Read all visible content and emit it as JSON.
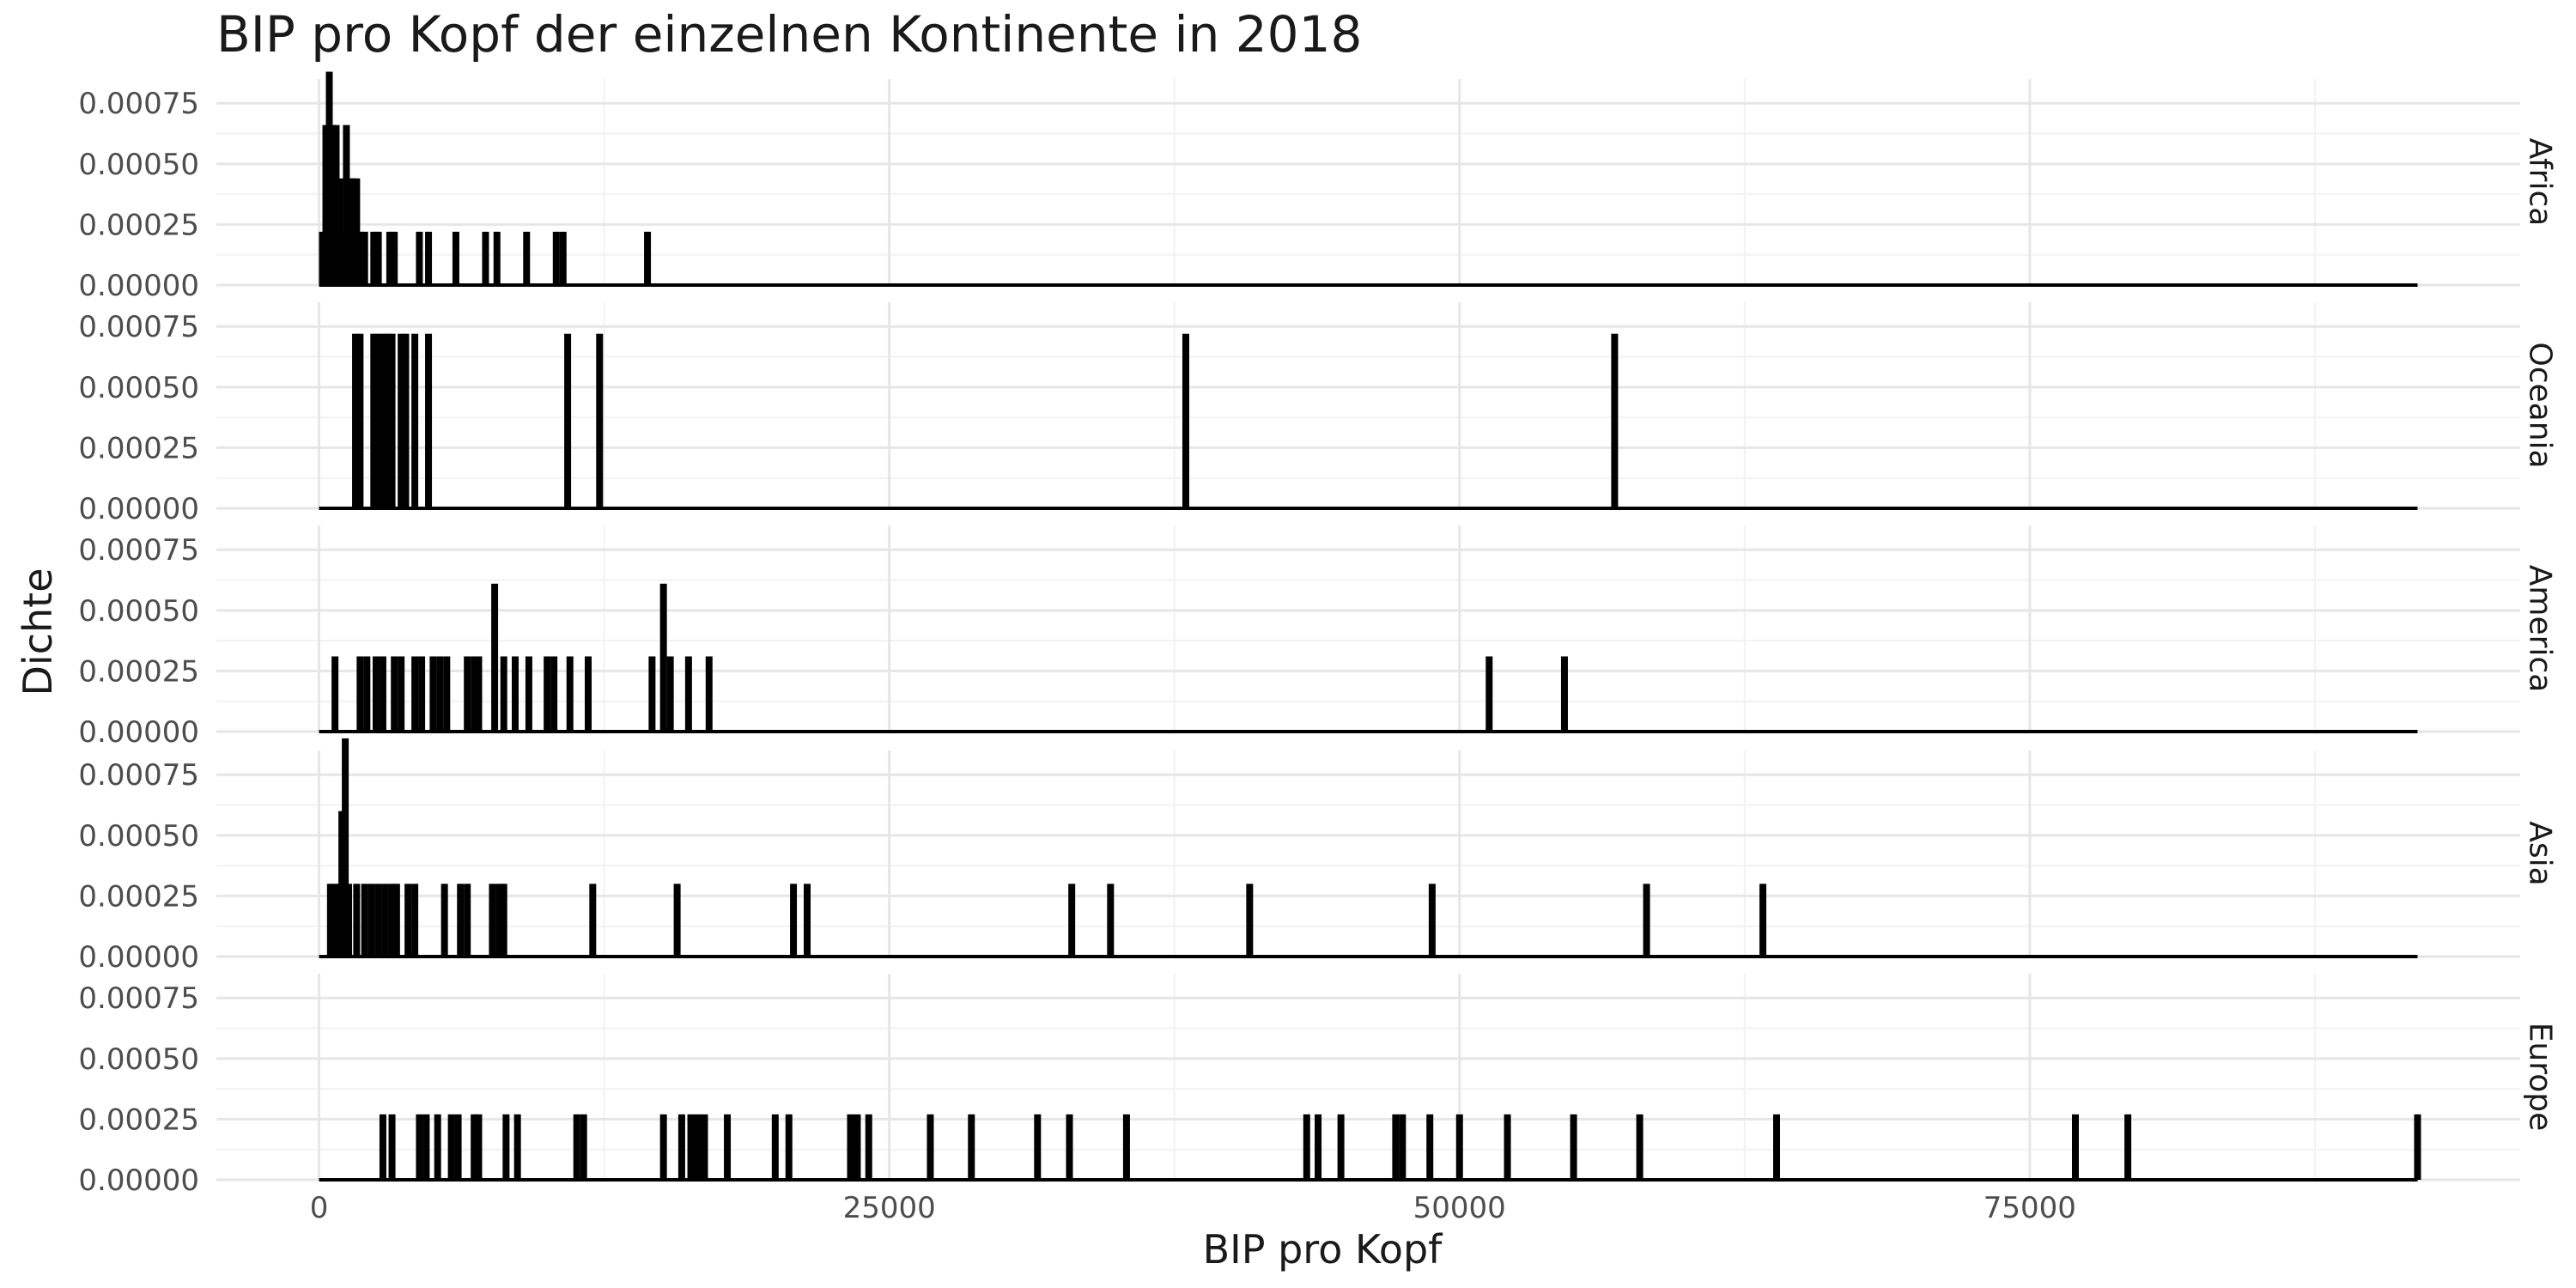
{
  "chart_data": {
    "type": "bar",
    "title": "BIP pro Kopf der einzelnen Kontinente in 2018",
    "xlabel": "BIP pro Kopf",
    "ylabel": "Dichte",
    "xlim": [
      -4500,
      96500
    ],
    "x_ticks": [
      0,
      25000,
      50000,
      75000
    ],
    "x_tick_labels": [
      "0",
      "25000",
      "50000",
      "75000"
    ],
    "ylim": [
      0,
      0.00085
    ],
    "y_ticks": [
      0,
      0.00025,
      0.0005,
      0.00075
    ],
    "y_tick_labels": [
      "0.00000",
      "0.00025",
      "0.00050",
      "0.00075"
    ],
    "grid": true,
    "baseline_range": [
      0,
      92000
    ],
    "panels": [
      {
        "name": "Africa",
        "bars": [
          {
            "x": 150,
            "y": 0.00022
          },
          {
            "x": 300,
            "y": 0.00066
          },
          {
            "x": 450,
            "y": 0.00088
          },
          {
            "x": 600,
            "y": 0.00066
          },
          {
            "x": 750,
            "y": 0.00066
          },
          {
            "x": 900,
            "y": 0.00044
          },
          {
            "x": 1050,
            "y": 0.00022
          },
          {
            "x": 1200,
            "y": 0.00066
          },
          {
            "x": 1350,
            "y": 0.00044
          },
          {
            "x": 1500,
            "y": 0.00044
          },
          {
            "x": 1650,
            "y": 0.00044
          },
          {
            "x": 1800,
            "y": 0.00022
          },
          {
            "x": 2000,
            "y": 0.00022
          },
          {
            "x": 2400,
            "y": 0.00022
          },
          {
            "x": 2600,
            "y": 0.00022
          },
          {
            "x": 3100,
            "y": 0.00022
          },
          {
            "x": 3300,
            "y": 0.00022
          },
          {
            "x": 4400,
            "y": 0.00022
          },
          {
            "x": 4800,
            "y": 0.00022
          },
          {
            "x": 6000,
            "y": 0.00022
          },
          {
            "x": 7300,
            "y": 0.00022
          },
          {
            "x": 7800,
            "y": 0.00022
          },
          {
            "x": 9100,
            "y": 0.00022
          },
          {
            "x": 10400,
            "y": 0.00022
          },
          {
            "x": 10700,
            "y": 0.00022
          },
          {
            "x": 14400,
            "y": 0.00022
          }
        ]
      },
      {
        "name": "Oceania",
        "bars": [
          {
            "x": 1600,
            "y": 0.00072
          },
          {
            "x": 1800,
            "y": 0.00072
          },
          {
            "x": 2400,
            "y": 0.00072
          },
          {
            "x": 2600,
            "y": 0.00072
          },
          {
            "x": 2800,
            "y": 0.00072
          },
          {
            "x": 3000,
            "y": 0.00072
          },
          {
            "x": 3200,
            "y": 0.00072
          },
          {
            "x": 3600,
            "y": 0.00072
          },
          {
            "x": 3800,
            "y": 0.00072
          },
          {
            "x": 4200,
            "y": 0.00072
          },
          {
            "x": 4800,
            "y": 0.00072
          },
          {
            "x": 10900,
            "y": 0.00072
          },
          {
            "x": 12300,
            "y": 0.00072
          },
          {
            "x": 38000,
            "y": 0.00072
          },
          {
            "x": 56800,
            "y": 0.00072
          }
        ]
      },
      {
        "name": "America",
        "bars": [
          {
            "x": 700,
            "y": 0.00031
          },
          {
            "x": 1800,
            "y": 0.00031
          },
          {
            "x": 2100,
            "y": 0.00031
          },
          {
            "x": 2500,
            "y": 0.00031
          },
          {
            "x": 2800,
            "y": 0.00031
          },
          {
            "x": 3300,
            "y": 0.00031
          },
          {
            "x": 3600,
            "y": 0.00031
          },
          {
            "x": 4200,
            "y": 0.00031
          },
          {
            "x": 4500,
            "y": 0.00031
          },
          {
            "x": 5000,
            "y": 0.00031
          },
          {
            "x": 5300,
            "y": 0.00031
          },
          {
            "x": 5600,
            "y": 0.00031
          },
          {
            "x": 6500,
            "y": 0.00031
          },
          {
            "x": 6800,
            "y": 0.00031
          },
          {
            "x": 7000,
            "y": 0.00031
          },
          {
            "x": 7700,
            "y": 0.00061
          },
          {
            "x": 8100,
            "y": 0.00031
          },
          {
            "x": 8600,
            "y": 0.00031
          },
          {
            "x": 9200,
            "y": 0.00031
          },
          {
            "x": 10000,
            "y": 0.00031
          },
          {
            "x": 10300,
            "y": 0.00031
          },
          {
            "x": 11000,
            "y": 0.00031
          },
          {
            "x": 11800,
            "y": 0.00031
          },
          {
            "x": 14600,
            "y": 0.00031
          },
          {
            "x": 15100,
            "y": 0.00061
          },
          {
            "x": 15400,
            "y": 0.00031
          },
          {
            "x": 16200,
            "y": 0.00031
          },
          {
            "x": 17100,
            "y": 0.00031
          },
          {
            "x": 51300,
            "y": 0.00031
          },
          {
            "x": 54600,
            "y": 0.00031
          }
        ]
      },
      {
        "name": "Asia",
        "bars": [
          {
            "x": 500,
            "y": 0.0003
          },
          {
            "x": 700,
            "y": 0.0003
          },
          {
            "x": 900,
            "y": 0.0003
          },
          {
            "x": 1000,
            "y": 0.0006
          },
          {
            "x": 1150,
            "y": 0.0009
          },
          {
            "x": 1300,
            "y": 0.0003
          },
          {
            "x": 1650,
            "y": 0.0003
          },
          {
            "x": 2000,
            "y": 0.0003
          },
          {
            "x": 2300,
            "y": 0.0003
          },
          {
            "x": 2600,
            "y": 0.0003
          },
          {
            "x": 2900,
            "y": 0.0003
          },
          {
            "x": 3200,
            "y": 0.0003
          },
          {
            "x": 3400,
            "y": 0.0003
          },
          {
            "x": 3900,
            "y": 0.0003
          },
          {
            "x": 4200,
            "y": 0.0003
          },
          {
            "x": 5500,
            "y": 0.0003
          },
          {
            "x": 6200,
            "y": 0.0003
          },
          {
            "x": 6500,
            "y": 0.0003
          },
          {
            "x": 7600,
            "y": 0.0003
          },
          {
            "x": 7900,
            "y": 0.0003
          },
          {
            "x": 8100,
            "y": 0.0003
          },
          {
            "x": 12000,
            "y": 0.0003
          },
          {
            "x": 15700,
            "y": 0.0003
          },
          {
            "x": 20800,
            "y": 0.0003
          },
          {
            "x": 21400,
            "y": 0.0003
          },
          {
            "x": 33000,
            "y": 0.0003
          },
          {
            "x": 34700,
            "y": 0.0003
          },
          {
            "x": 40800,
            "y": 0.0003
          },
          {
            "x": 48800,
            "y": 0.0003
          },
          {
            "x": 58200,
            "y": 0.0003
          },
          {
            "x": 63300,
            "y": 0.0003
          }
        ]
      },
      {
        "name": "Europe",
        "bars": [
          {
            "x": 2800,
            "y": 0.00027
          },
          {
            "x": 3200,
            "y": 0.00027
          },
          {
            "x": 4400,
            "y": 0.00027
          },
          {
            "x": 4700,
            "y": 0.00027
          },
          {
            "x": 5200,
            "y": 0.00027
          },
          {
            "x": 5800,
            "y": 0.00027
          },
          {
            "x": 6100,
            "y": 0.00027
          },
          {
            "x": 6800,
            "y": 0.00027
          },
          {
            "x": 7000,
            "y": 0.00027
          },
          {
            "x": 8200,
            "y": 0.00027
          },
          {
            "x": 8700,
            "y": 0.00027
          },
          {
            "x": 11300,
            "y": 0.00027
          },
          {
            "x": 11600,
            "y": 0.00027
          },
          {
            "x": 15100,
            "y": 0.00027
          },
          {
            "x": 15900,
            "y": 0.00027
          },
          {
            "x": 16300,
            "y": 0.00027
          },
          {
            "x": 16600,
            "y": 0.00027
          },
          {
            "x": 16900,
            "y": 0.00027
          },
          {
            "x": 17900,
            "y": 0.00027
          },
          {
            "x": 20000,
            "y": 0.00027
          },
          {
            "x": 20600,
            "y": 0.00027
          },
          {
            "x": 23300,
            "y": 0.00027
          },
          {
            "x": 23600,
            "y": 0.00027
          },
          {
            "x": 24100,
            "y": 0.00027
          },
          {
            "x": 26800,
            "y": 0.00027
          },
          {
            "x": 28600,
            "y": 0.00027
          },
          {
            "x": 31500,
            "y": 0.00027
          },
          {
            "x": 32900,
            "y": 0.00027
          },
          {
            "x": 35400,
            "y": 0.00027
          },
          {
            "x": 43300,
            "y": 0.00027
          },
          {
            "x": 43800,
            "y": 0.00027
          },
          {
            "x": 44800,
            "y": 0.00027
          },
          {
            "x": 47200,
            "y": 0.00027
          },
          {
            "x": 47500,
            "y": 0.00027
          },
          {
            "x": 48700,
            "y": 0.00027
          },
          {
            "x": 50000,
            "y": 0.00027
          },
          {
            "x": 52100,
            "y": 0.00027
          },
          {
            "x": 55000,
            "y": 0.00027
          },
          {
            "x": 57900,
            "y": 0.00027
          },
          {
            "x": 63900,
            "y": 0.00027
          },
          {
            "x": 77000,
            "y": 0.00027
          },
          {
            "x": 79300,
            "y": 0.00027
          },
          {
            "x": 92000,
            "y": 0.00027
          }
        ]
      }
    ]
  },
  "colors": {
    "bar": "#000000",
    "grid_major": "#e6e6e6",
    "grid_minor": "#f2f2f2",
    "tick_text": "#4d4d4d",
    "strip_text": "#1a1a1a"
  }
}
